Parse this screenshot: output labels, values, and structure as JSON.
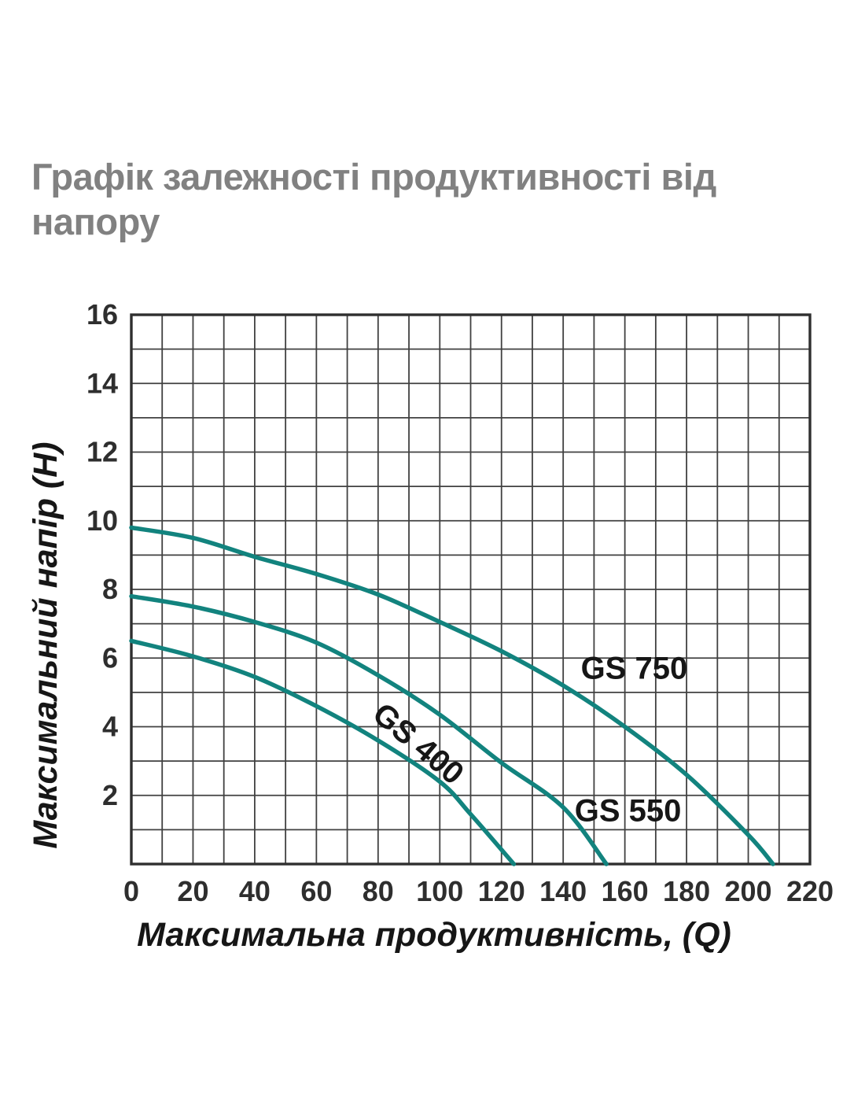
{
  "page": {
    "title_lines": [
      "Графік залежності продуктивності від",
      "напору"
    ]
  },
  "chart_data": {
    "type": "line",
    "title": "Графік залежності продуктивності від напору",
    "xlabel": "Максимальна продуктивність, (Q)",
    "ylabel": "Максимальний напір (Н)",
    "xlim": [
      0,
      220
    ],
    "ylim": [
      0,
      16
    ],
    "x_tick_labels": [
      0,
      20,
      40,
      60,
      80,
      100,
      120,
      140,
      160,
      180,
      200,
      220
    ],
    "y_tick_labels": [
      2,
      4,
      6,
      8,
      10,
      12,
      14,
      16
    ],
    "x_grid_step": 10,
    "y_grid_step": 1,
    "grid": true,
    "legend_position": "inline-labels",
    "series": [
      {
        "name": "GS 750",
        "points": [
          [
            0,
            9.8
          ],
          [
            20,
            9.5
          ],
          [
            40,
            8.95
          ],
          [
            60,
            8.45
          ],
          [
            80,
            7.85
          ],
          [
            100,
            7.05
          ],
          [
            120,
            6.2
          ],
          [
            140,
            5.2
          ],
          [
            160,
            4.0
          ],
          [
            180,
            2.6
          ],
          [
            200,
            0.85
          ],
          [
            208,
            0
          ]
        ],
        "label": {
          "x": 163,
          "y": 5.7,
          "rotation": 0
        }
      },
      {
        "name": "GS 550",
        "points": [
          [
            0,
            7.8
          ],
          [
            20,
            7.5
          ],
          [
            40,
            7.05
          ],
          [
            60,
            6.45
          ],
          [
            80,
            5.5
          ],
          [
            100,
            4.35
          ],
          [
            120,
            2.95
          ],
          [
            140,
            1.65
          ],
          [
            154,
            0
          ]
        ],
        "label": {
          "x": 161,
          "y": 1.55,
          "rotation": 0
        }
      },
      {
        "name": "GS 400",
        "points": [
          [
            0,
            6.5
          ],
          [
            20,
            6.05
          ],
          [
            40,
            5.45
          ],
          [
            60,
            4.6
          ],
          [
            80,
            3.6
          ],
          [
            100,
            2.4
          ],
          [
            110,
            1.45
          ],
          [
            124,
            0
          ]
        ],
        "label": {
          "x": 93,
          "y": 3.5,
          "rotation": 40
        }
      }
    ],
    "colors": {
      "curve": "#12837E",
      "grid": "#414141",
      "border": "#2f2f2f",
      "tick_text": "#2e2e2e",
      "axis_title_text": "#161616",
      "series_label_text": "#161616",
      "page_title_text": "#818181",
      "background": "#ffffff"
    }
  }
}
